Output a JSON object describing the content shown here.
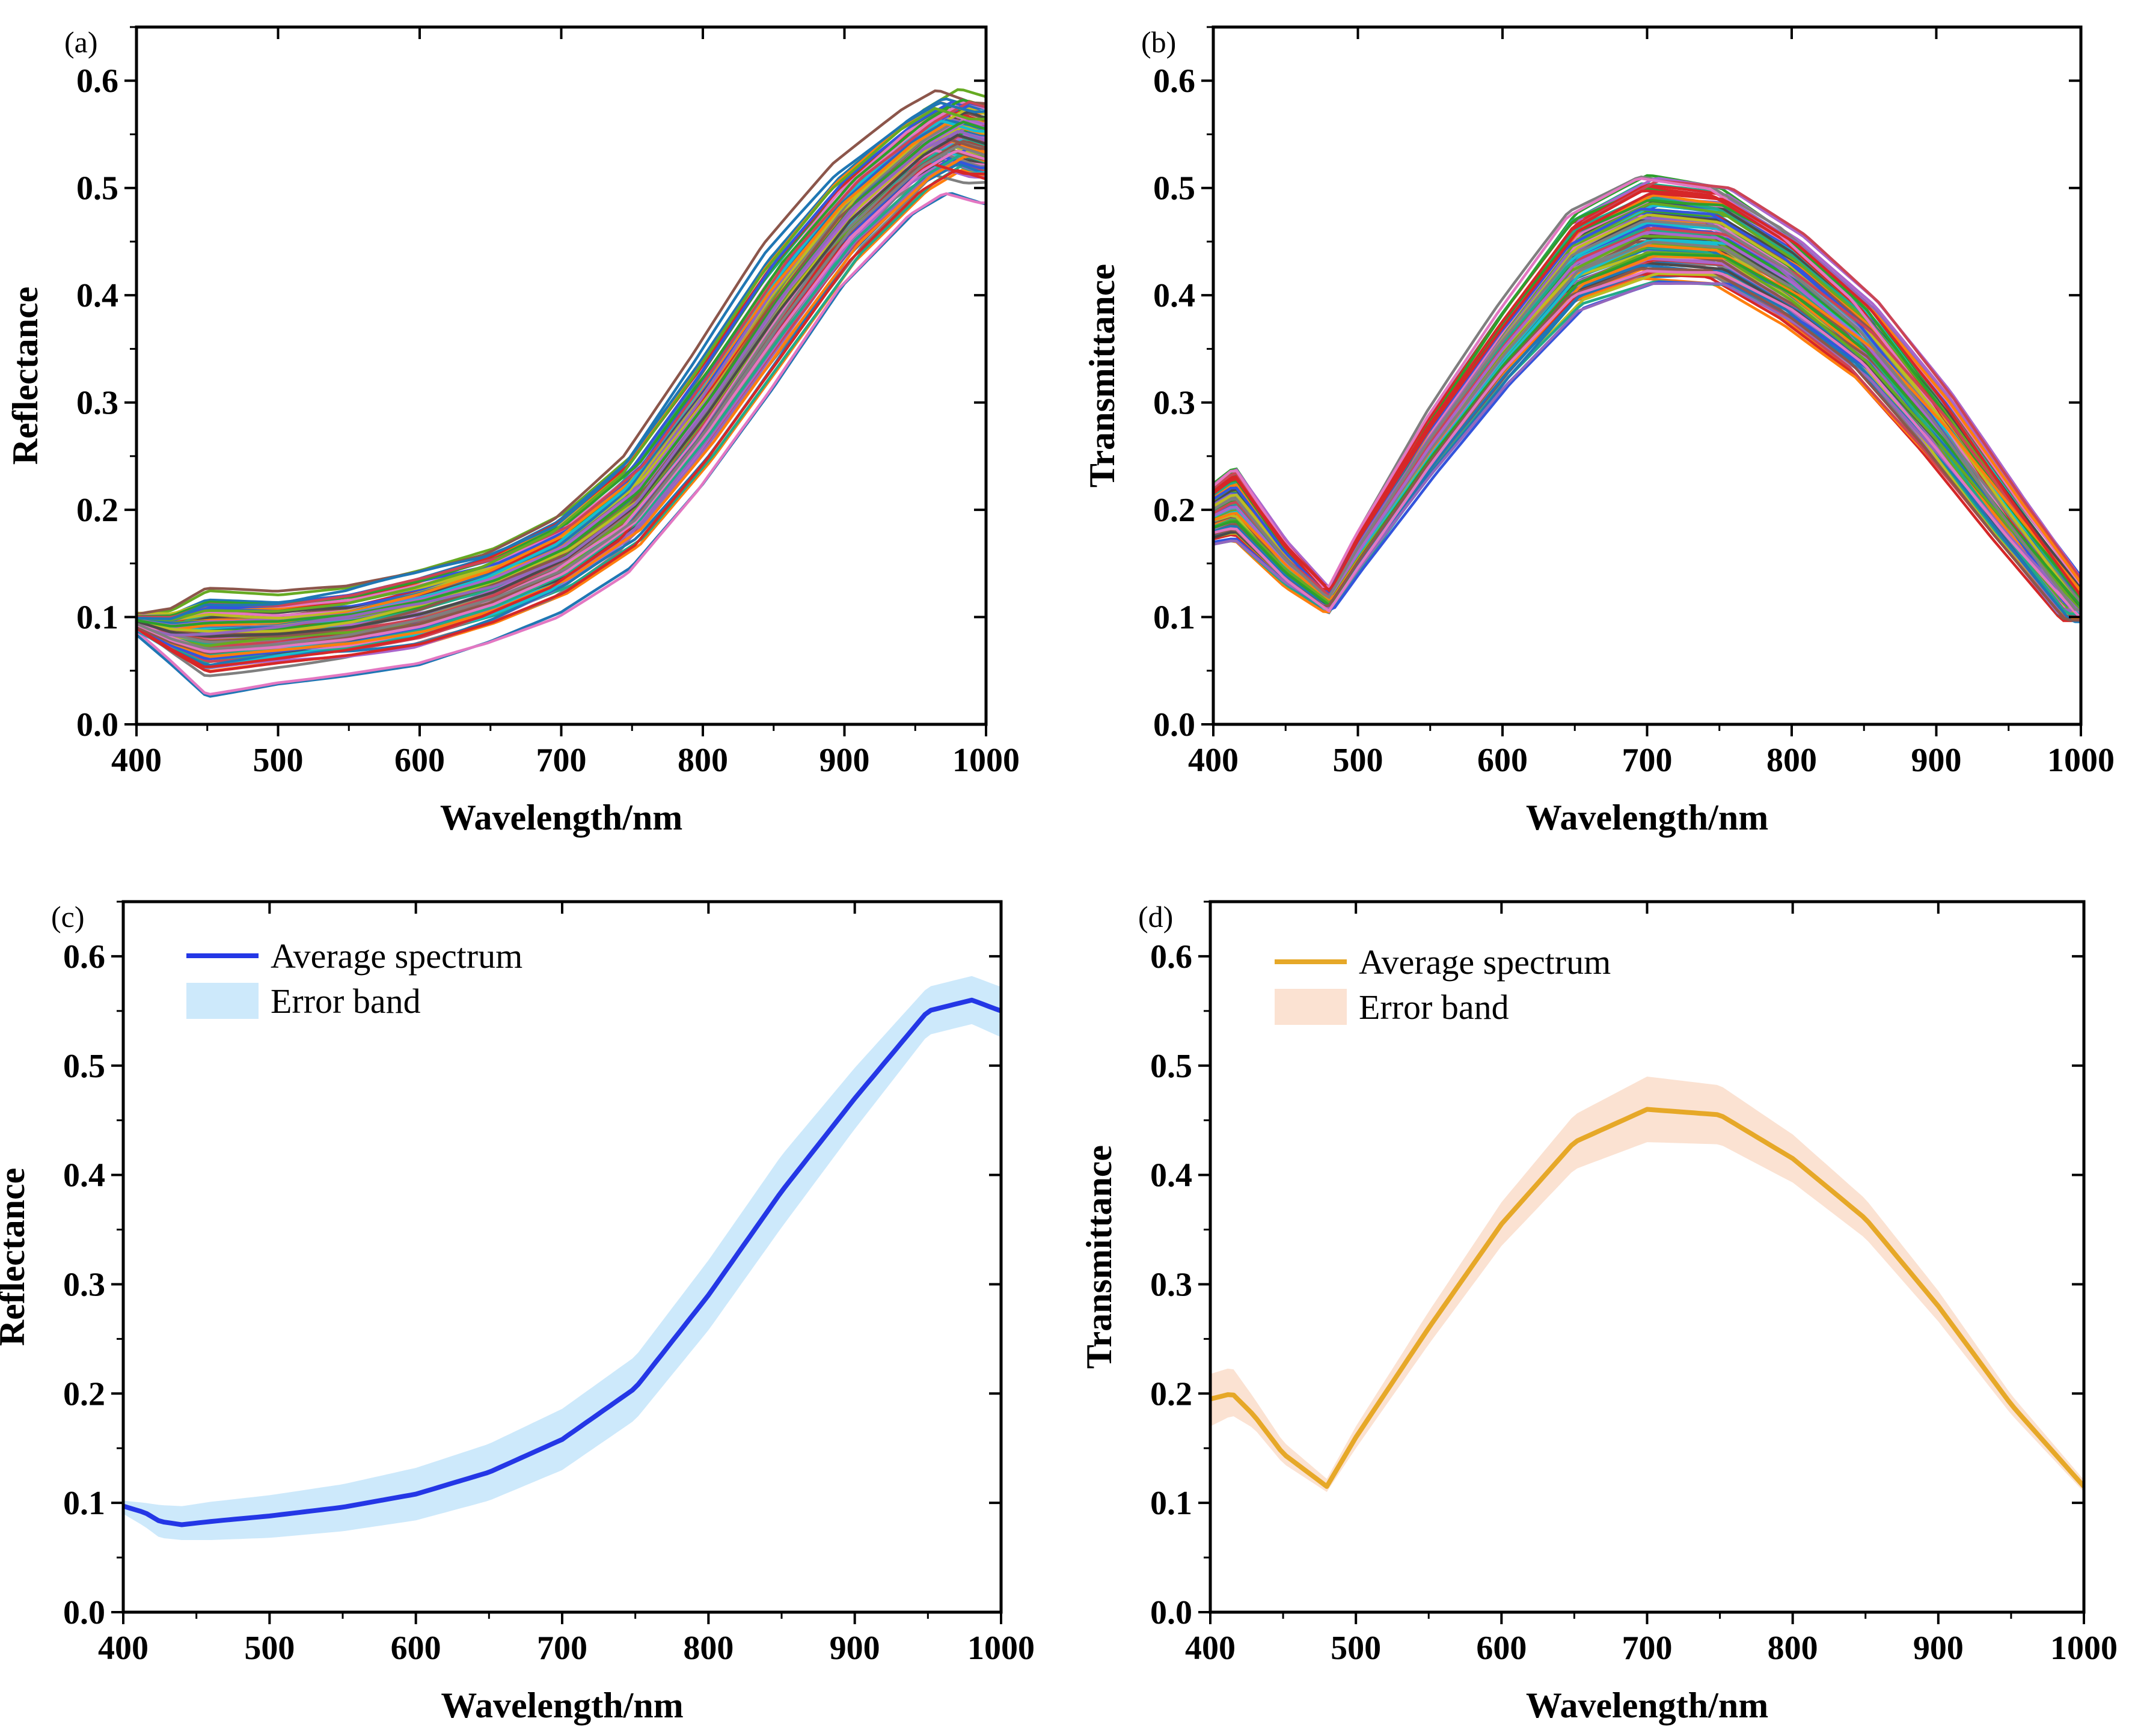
{
  "chart_data": [
    {
      "panel_label": "(a)",
      "type": "line",
      "title": "",
      "xlabel": "Wavelength/nm",
      "ylabel": "Reflectance",
      "xlim": [
        400,
        1000
      ],
      "ylim": [
        0.0,
        0.65
      ],
      "xticks": [
        "400",
        "500",
        "600",
        "700",
        "800",
        "900",
        "1000"
      ],
      "yticks": [
        "0.0",
        "0.1",
        "0.2",
        "0.3",
        "0.4",
        "0.5",
        "0.6"
      ],
      "legend": null,
      "x": [
        400,
        425,
        450,
        500,
        550,
        600,
        650,
        700,
        750,
        800,
        850,
        900,
        950,
        975,
        1000
      ],
      "series_template": {
        "description": "many overlapping sample spectra",
        "count": 120,
        "base": [
          0.095,
          0.085,
          0.082,
          0.085,
          0.092,
          0.105,
          0.125,
          0.155,
          0.205,
          0.29,
          0.385,
          0.47,
          0.53,
          0.55,
          0.54
        ],
        "spread": [
          0.01,
          0.03,
          0.06,
          0.05,
          0.05,
          0.055,
          0.055,
          0.06,
          0.07,
          0.08,
          0.085,
          0.07,
          0.06,
          0.06,
          0.06
        ]
      },
      "colors": [
        "#1f77b4",
        "#ff7f0e",
        "#2ca02c",
        "#d62728",
        "#9467bd",
        "#8c564b",
        "#e377c2",
        "#7f7f7f",
        "#bcbd22",
        "#17becf",
        "#4a4a4a",
        "#3355dd",
        "#22aa88",
        "#cc4455",
        "#aa66cc",
        "#66aa22"
      ]
    },
    {
      "panel_label": "(b)",
      "type": "line",
      "title": "",
      "xlabel": "Wavelength/nm",
      "ylabel": "Transmittance",
      "xlim": [
        400,
        1000
      ],
      "ylim": [
        0.0,
        0.65
      ],
      "xticks": [
        "400",
        "500",
        "600",
        "700",
        "800",
        "900",
        "1000"
      ],
      "yticks": [
        "0.0",
        "0.1",
        "0.2",
        "0.3",
        "0.4",
        "0.5",
        "0.6"
      ],
      "legend": null,
      "x": [
        400,
        415,
        450,
        480,
        500,
        550,
        600,
        650,
        700,
        750,
        800,
        850,
        900,
        950,
        1000
      ],
      "series_template": {
        "description": "many overlapping sample spectra",
        "count": 120,
        "base": [
          0.195,
          0.205,
          0.15,
          0.115,
          0.16,
          0.26,
          0.35,
          0.43,
          0.46,
          0.455,
          0.415,
          0.36,
          0.28,
          0.19,
          0.105
        ],
        "spread": [
          0.04,
          0.05,
          0.03,
          0.015,
          0.025,
          0.04,
          0.05,
          0.065,
          0.075,
          0.07,
          0.065,
          0.055,
          0.045,
          0.03,
          0.015
        ]
      },
      "colors": [
        "#1f77b4",
        "#ff7f0e",
        "#2ca02c",
        "#d62728",
        "#9467bd",
        "#8c564b",
        "#e377c2",
        "#7f7f7f",
        "#bcbd22",
        "#17becf",
        "#4a4a4a",
        "#3355dd",
        "#22aa88",
        "#cc4455",
        "#aa66cc",
        "#66aa22"
      ]
    },
    {
      "panel_label": "(c)",
      "type": "line",
      "title": "",
      "xlabel": "Wavelength/nm",
      "ylabel": "Reflectance",
      "xlim": [
        400,
        1000
      ],
      "ylim": [
        0.0,
        0.65
      ],
      "xticks": [
        "400",
        "500",
        "600",
        "700",
        "800",
        "900",
        "1000"
      ],
      "yticks": [
        "0.0",
        "0.1",
        "0.2",
        "0.3",
        "0.4",
        "0.5",
        "0.6"
      ],
      "legend": {
        "placement": "top-left",
        "line_label": "Average spectrum",
        "band_label": "Error band"
      },
      "x": [
        400,
        415,
        425,
        440,
        460,
        500,
        550,
        600,
        650,
        700,
        750,
        800,
        850,
        900,
        950,
        980,
        1000
      ],
      "series": [
        {
          "name": "Average spectrum",
          "values": [
            0.097,
            0.091,
            0.083,
            0.08,
            0.083,
            0.088,
            0.096,
            0.108,
            0.128,
            0.158,
            0.205,
            0.29,
            0.385,
            0.47,
            0.55,
            0.56,
            0.55
          ],
          "color": "#2437e6"
        }
      ],
      "error_band": {
        "name": "Error band",
        "lower": [
          0.09,
          0.078,
          0.068,
          0.066,
          0.066,
          0.068,
          0.074,
          0.084,
          0.102,
          0.13,
          0.176,
          0.258,
          0.352,
          0.442,
          0.528,
          0.538,
          0.526
        ],
        "upper": [
          0.102,
          0.1,
          0.098,
          0.097,
          0.101,
          0.107,
          0.117,
          0.132,
          0.154,
          0.186,
          0.234,
          0.322,
          0.418,
          0.498,
          0.572,
          0.582,
          0.572
        ],
        "color": "#cde9fb"
      }
    },
    {
      "panel_label": "(d)",
      "type": "line",
      "title": "",
      "xlabel": "Wavelength/nm",
      "ylabel": "Transmittance",
      "xlim": [
        400,
        1000
      ],
      "ylim": [
        0.0,
        0.65
      ],
      "xticks": [
        "400",
        "500",
        "600",
        "700",
        "800",
        "900",
        "1000"
      ],
      "yticks": [
        "0.0",
        "0.1",
        "0.2",
        "0.3",
        "0.4",
        "0.5",
        "0.6"
      ],
      "legend": {
        "placement": "top-left",
        "line_label": "Average spectrum",
        "band_label": "Error band"
      },
      "x": [
        400,
        415,
        430,
        450,
        480,
        500,
        550,
        600,
        650,
        700,
        750,
        800,
        850,
        900,
        950,
        1000
      ],
      "series": [
        {
          "name": "Average spectrum",
          "values": [
            0.195,
            0.2,
            0.18,
            0.145,
            0.115,
            0.16,
            0.26,
            0.355,
            0.43,
            0.46,
            0.455,
            0.415,
            0.36,
            0.28,
            0.19,
            0.115
          ],
          "color": "#e6a828"
        }
      ],
      "error_band": {
        "name": "Error band",
        "lower": [
          0.17,
          0.18,
          0.168,
          0.136,
          0.11,
          0.15,
          0.245,
          0.335,
          0.405,
          0.43,
          0.428,
          0.393,
          0.342,
          0.266,
          0.181,
          0.11
        ],
        "upper": [
          0.218,
          0.224,
          0.196,
          0.156,
          0.122,
          0.17,
          0.275,
          0.375,
          0.455,
          0.49,
          0.482,
          0.437,
          0.378,
          0.294,
          0.199,
          0.121
        ],
        "color": "#fbe2d2"
      }
    }
  ]
}
